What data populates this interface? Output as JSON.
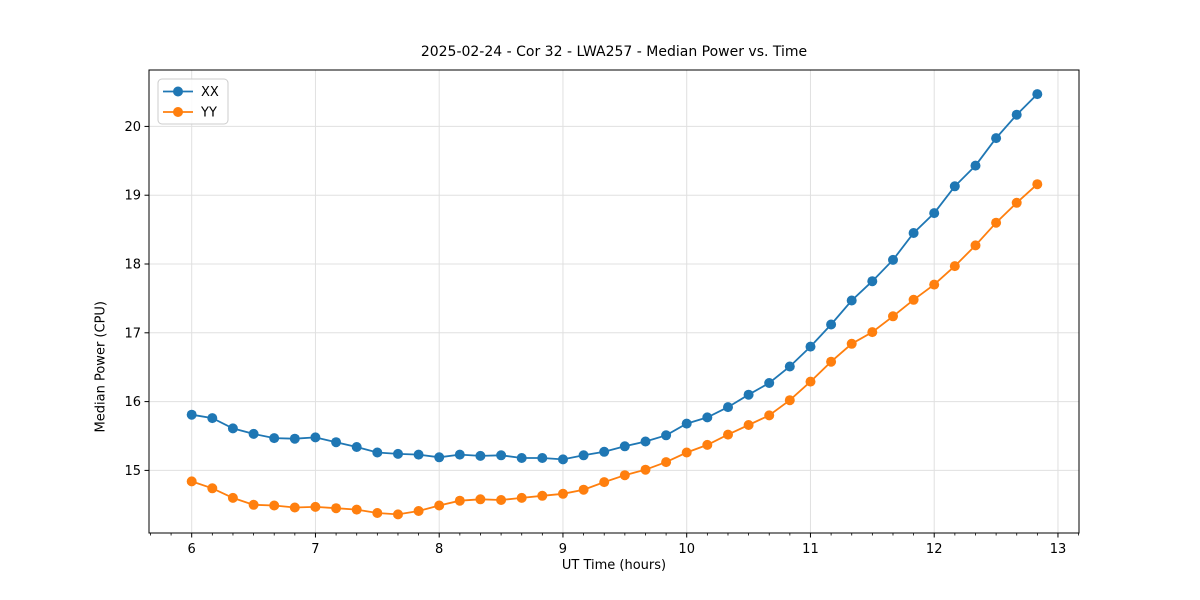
{
  "figure": {
    "title": "2025-02-24 - Cor 32 - LWA257 - Median Power vs. Time"
  },
  "chart_data": {
    "type": "line",
    "title": "2025-02-24 - Cor 32 - LWA257 - Median Power vs. Time",
    "xlabel": "UT Time (hours)",
    "ylabel": "Median Power (CPU)",
    "xlim": [
      5.655,
      13.17
    ],
    "ylim": [
      14.09,
      20.82
    ],
    "xticks": [
      6,
      7,
      8,
      9,
      10,
      11,
      12,
      13
    ],
    "yticks": [
      15,
      16,
      17,
      18,
      19,
      20
    ],
    "x_minor_step": 0.16667,
    "grid": true,
    "grid_color": "#e0e0e0",
    "spine_color": "#000000",
    "legend_position": "upper left",
    "x": [
      6.0,
      6.1667,
      6.3333,
      6.5,
      6.6667,
      6.8333,
      7.0,
      7.1667,
      7.3333,
      7.5,
      7.6667,
      7.8333,
      8.0,
      8.1667,
      8.3333,
      8.5,
      8.6667,
      8.8333,
      9.0,
      9.1667,
      9.3333,
      9.5,
      9.6667,
      9.8333,
      10.0,
      10.1667,
      10.3333,
      10.5,
      10.6667,
      10.8333,
      11.0,
      11.1667,
      11.3333,
      11.5,
      11.6667,
      11.8333,
      12.0,
      12.1667,
      12.3333,
      12.5,
      12.6667,
      12.8333
    ],
    "series": [
      {
        "name": "XX",
        "color": "#1f77b4",
        "values": [
          15.81,
          15.76,
          15.61,
          15.53,
          15.47,
          15.46,
          15.48,
          15.41,
          15.34,
          15.26,
          15.24,
          15.23,
          15.19,
          15.23,
          15.21,
          15.22,
          15.18,
          15.18,
          15.16,
          15.22,
          15.27,
          15.35,
          15.42,
          15.51,
          15.68,
          15.77,
          15.92,
          16.1,
          16.27,
          16.51,
          16.8,
          17.12,
          17.47,
          17.75,
          18.06,
          18.45,
          18.74,
          19.13,
          19.43,
          19.83,
          20.17,
          20.47
        ]
      },
      {
        "name": "YY",
        "color": "#ff7f0e",
        "values": [
          14.84,
          14.74,
          14.6,
          14.5,
          14.49,
          14.46,
          14.47,
          14.45,
          14.43,
          14.38,
          14.36,
          14.41,
          14.49,
          14.56,
          14.58,
          14.57,
          14.6,
          14.63,
          14.66,
          14.72,
          14.83,
          14.93,
          15.01,
          15.12,
          15.26,
          15.37,
          15.52,
          15.66,
          15.8,
          16.02,
          16.29,
          16.58,
          16.84,
          17.01,
          17.24,
          17.48,
          17.7,
          17.97,
          18.27,
          18.6,
          18.89,
          19.16
        ]
      }
    ]
  }
}
